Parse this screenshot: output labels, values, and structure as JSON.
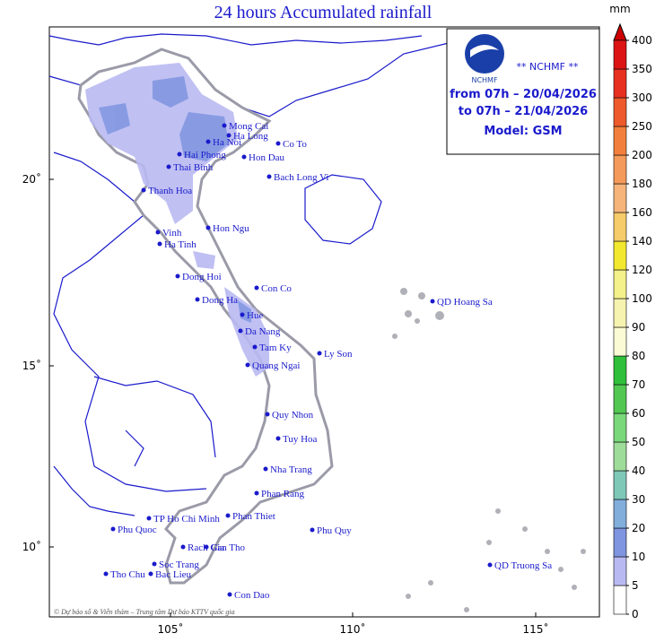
{
  "header": {
    "title": "24 hours Accumulated rainfall"
  },
  "info": {
    "logo_text": "NCHMF",
    "agency": "** NCHMF **",
    "from": "from 07h – 20/04/2026",
    "to": "to 07h – 21/04/2026",
    "model": "Model: GSM"
  },
  "axes": {
    "lat_labels": [
      "20˚",
      "15˚",
      "10˚"
    ],
    "lon_labels": [
      "105˚",
      "110˚",
      "115˚"
    ]
  },
  "places": [
    "Mong Cai",
    "Ha Long",
    "Co To",
    "Ha Noi",
    "Hai Phong",
    "Hon Dau",
    "Thai Binh",
    "Bach Long Vi",
    "Thanh Hoa",
    "Hon Ngu",
    "Vinh",
    "Ha Tinh",
    "Dong Hoi",
    "Con Co",
    "Dong Ha",
    "Hue",
    "Da Nang",
    "Tam Ky",
    "Ly Son",
    "Quang Ngai",
    "QD Hoang Sa",
    "Quy Nhon",
    "Tuy Hoa",
    "Nha Trang",
    "Phan Rang",
    "Phan Thiet",
    "Phu Quy",
    "TP Ho Chi Minh",
    "Phu Quoc",
    "Rach Gia",
    "Can Tho",
    "Soc Trang",
    "Tho Chu",
    "Bac Lieu",
    "Con Dao",
    "QD Truong Sa"
  ],
  "legend": {
    "unit": "mm",
    "levels": [
      0,
      5,
      10,
      20,
      30,
      40,
      50,
      60,
      70,
      80,
      90,
      100,
      120,
      140,
      160,
      180,
      200,
      250,
      300,
      350,
      400
    ],
    "colors": [
      "#ffffff",
      "#b9b9f2",
      "#7f95e0",
      "#82aedc",
      "#7ec8b8",
      "#9edc9a",
      "#7ad87a",
      "#52c852",
      "#2fbf3a",
      "#fbfbd6",
      "#f6f2b0",
      "#f4f08a",
      "#f2e830",
      "#f6cc6a",
      "#f6b47a",
      "#f49a5a",
      "#f2803c",
      "#ee5a2c",
      "#e83020",
      "#dc1414"
    ],
    "over_color": "#cc0000"
  },
  "footer": "© Dự báo số & Viễn thám – Trung tâm Dự báo KTTV quốc gia"
}
